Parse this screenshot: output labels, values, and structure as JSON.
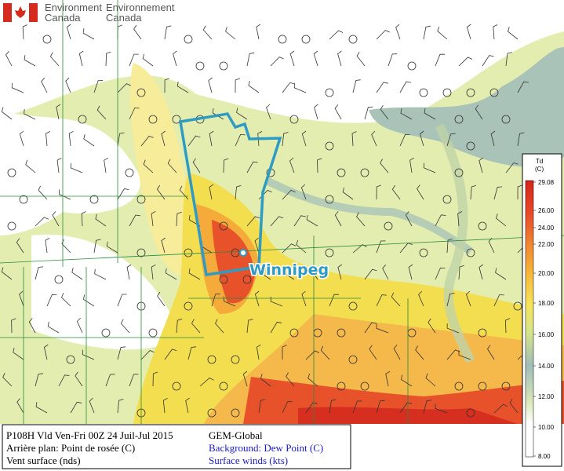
{
  "header": {
    "en_line1": "Environment",
    "en_line2": "Canada",
    "fr_line1": "Environnement",
    "fr_line2": "Canada"
  },
  "map": {
    "city": "Winnipeg"
  },
  "info": {
    "left": [
      "P108H Vld Ven-Fri 00Z 24 Juil-Jul 2015",
      "Arrière plan: Point de rosée (C)",
      "Vent surface (nds)"
    ],
    "right": [
      "GEM-Global",
      "Background: Dew Point (C)",
      "Surface winds (kts)"
    ]
  },
  "legend": {
    "title": "Td",
    "unit": "(C)",
    "labels": [
      "29.08",
      "26.00",
      "24.00",
      "22.00",
      "20.00",
      "18.00",
      "16.00",
      "14.00",
      "12.00",
      "10.00",
      "8.00"
    ]
  }
}
